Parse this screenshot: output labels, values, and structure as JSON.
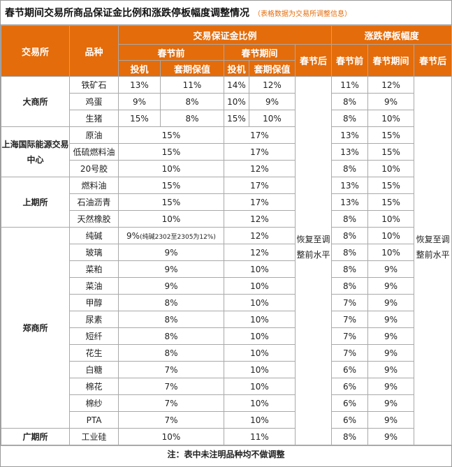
{
  "header": {
    "title": "春节期间交易所商品保证金比例和涨跌停板幅度调整情况",
    "subtitle": "（表格数据为交易所调整信息）"
  },
  "columns": {
    "exchange": "交易所",
    "variety": "品种",
    "margin_group": "交易保证金比例",
    "limit_group": "涨跌停板幅度",
    "before": "春节前",
    "during": "春节期间",
    "after": "春节后",
    "spec": "投机",
    "hedge": "套期保值",
    "limit_before": "春节前",
    "limit_during": "春节期间",
    "limit_after": "春节后"
  },
  "after_text": "恢复至调整前水平",
  "groups": [
    {
      "exchange": "大商所",
      "rows": [
        {
          "variety": "铁矿石",
          "before_spec": "13%",
          "before_hedge": "11%",
          "during_spec": "14%",
          "during_hedge": "12%",
          "limit_before": "11%",
          "limit_during": "12%"
        },
        {
          "variety": "鸡蛋",
          "before_spec": "9%",
          "before_hedge": "8%",
          "during_spec": "10%",
          "during_hedge": "9%",
          "limit_before": "8%",
          "limit_during": "9%"
        },
        {
          "variety": "生猪",
          "before_spec": "15%",
          "before_hedge": "8%",
          "during_spec": "15%",
          "during_hedge": "10%",
          "limit_before": "8%",
          "limit_during": "10%"
        }
      ]
    },
    {
      "exchange": "上海国际能源交易中心",
      "rows": [
        {
          "variety": "原油",
          "before": "15%",
          "during": "17%",
          "limit_before": "13%",
          "limit_during": "15%"
        },
        {
          "variety": "低硫燃料油",
          "before": "15%",
          "during": "17%",
          "limit_before": "13%",
          "limit_during": "15%"
        },
        {
          "variety": "20号胶",
          "before": "10%",
          "during": "12%",
          "limit_before": "8%",
          "limit_during": "10%"
        }
      ]
    },
    {
      "exchange": "上期所",
      "rows": [
        {
          "variety": "燃料油",
          "before": "15%",
          "during": "17%",
          "limit_before": "13%",
          "limit_during": "15%"
        },
        {
          "variety": "石油沥青",
          "before": "15%",
          "during": "17%",
          "limit_before": "13%",
          "limit_during": "15%"
        },
        {
          "variety": "天然橡胶",
          "before": "10%",
          "during": "12%",
          "limit_before": "8%",
          "limit_during": "10%"
        }
      ]
    },
    {
      "exchange": "郑商所",
      "rows": [
        {
          "variety": "纯碱",
          "before": "9%",
          "before_note": "(纯碱2302至2305为12%)",
          "during": "12%",
          "limit_before": "8%",
          "limit_during": "10%"
        },
        {
          "variety": "玻璃",
          "before": "9%",
          "during": "12%",
          "limit_before": "8%",
          "limit_during": "10%"
        },
        {
          "variety": "菜粕",
          "before": "9%",
          "during": "10%",
          "limit_before": "8%",
          "limit_during": "9%"
        },
        {
          "variety": "菜油",
          "before": "9%",
          "during": "10%",
          "limit_before": "8%",
          "limit_during": "9%"
        },
        {
          "variety": "甲醇",
          "before": "8%",
          "during": "10%",
          "limit_before": "7%",
          "limit_during": "9%"
        },
        {
          "variety": "尿素",
          "before": "8%",
          "during": "10%",
          "limit_before": "7%",
          "limit_during": "9%"
        },
        {
          "variety": "短纤",
          "before": "8%",
          "during": "10%",
          "limit_before": "7%",
          "limit_during": "9%"
        },
        {
          "variety": "花生",
          "before": "8%",
          "during": "10%",
          "limit_before": "7%",
          "limit_during": "9%"
        },
        {
          "variety": "白糖",
          "before": "7%",
          "during": "10%",
          "limit_before": "6%",
          "limit_during": "9%"
        },
        {
          "variety": "棉花",
          "before": "7%",
          "during": "10%",
          "limit_before": "6%",
          "limit_during": "9%"
        },
        {
          "variety": "棉纱",
          "before": "7%",
          "during": "10%",
          "limit_before": "6%",
          "limit_during": "9%"
        },
        {
          "variety": "PTA",
          "before": "7%",
          "during": "10%",
          "limit_before": "6%",
          "limit_during": "9%"
        }
      ]
    },
    {
      "exchange": "广期所",
      "rows": [
        {
          "variety": "工业硅",
          "before": "10%",
          "during": "11%",
          "limit_before": "8%",
          "limit_during": "9%"
        }
      ]
    }
  ],
  "footnote": "注：表中未注明品种均不做调整",
  "colors": {
    "header_bg": "#e46c0a",
    "header_text": "#ffffff",
    "subtitle": "#e46c0a",
    "border": "#a9a9a9"
  }
}
